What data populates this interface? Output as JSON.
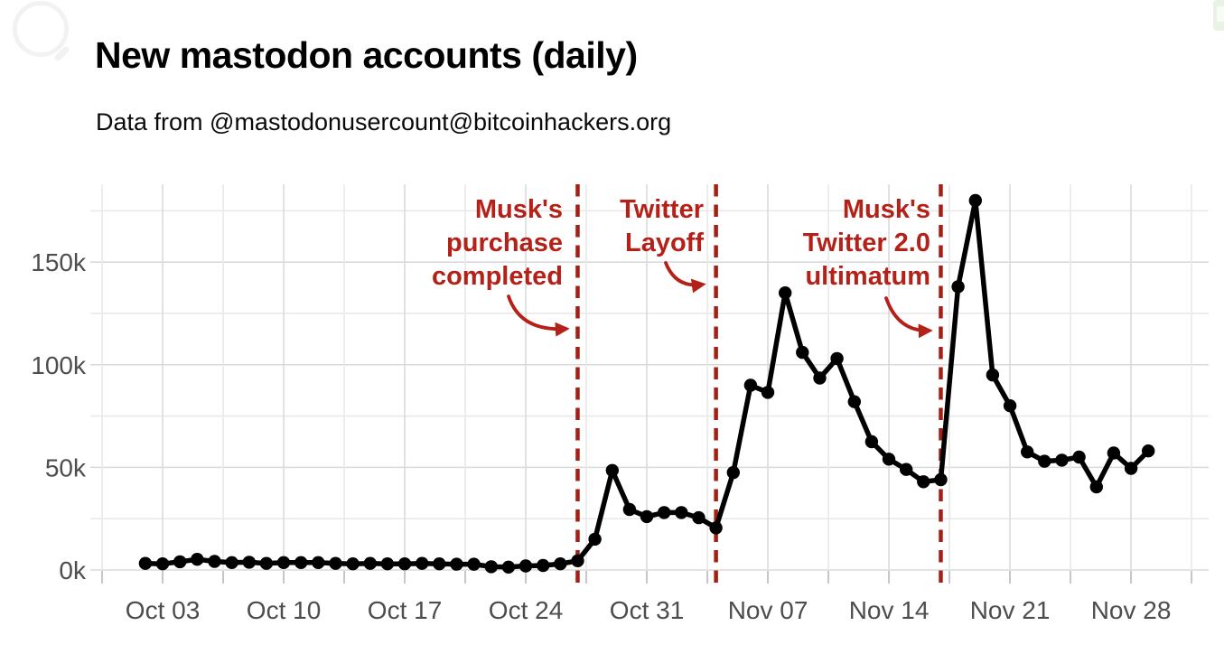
{
  "header": {
    "title": "New mastodon accounts (daily)",
    "subtitle": "Data from @mastodonusercount@bitcoinhackers.org"
  },
  "icons": {
    "search": "magnifying-glass-outline",
    "corner_badge": "partial-green-app-badge"
  },
  "colors": {
    "background": "#ffffff",
    "series": "#000000",
    "annotation_red": "#b42118",
    "event_line_red": "#a32015",
    "axis_text": "#4d4d4d",
    "grid_major": "#dadada",
    "grid_minor": "#e9e9e9",
    "tick": "#c6c6c6"
  },
  "chart_data": {
    "type": "line",
    "title": "New mastodon accounts (daily)",
    "subtitle": "Data from @mastodonusercount@bitcoinhackers.org",
    "xlabel": "",
    "ylabel": "",
    "unit_note": "values in thousands of new accounts per day",
    "grid": "on",
    "legend": "none",
    "ylim_k": [
      0,
      187
    ],
    "y_ticks": [
      {
        "label": "0k",
        "value": 0
      },
      {
        "label": "50k",
        "value": 50
      },
      {
        "label": "100k",
        "value": 100
      },
      {
        "label": "150k",
        "value": 150
      }
    ],
    "x_tick_labels": [
      "Oct 03",
      "Oct 10",
      "Oct 17",
      "Oct 24",
      "Oct 31",
      "Nov 07",
      "Nov 14",
      "Nov 21",
      "Nov 28"
    ],
    "x": [
      "Oct 02",
      "Oct 03",
      "Oct 04",
      "Oct 05",
      "Oct 06",
      "Oct 07",
      "Oct 08",
      "Oct 09",
      "Oct 10",
      "Oct 11",
      "Oct 12",
      "Oct 13",
      "Oct 14",
      "Oct 15",
      "Oct 16",
      "Oct 17",
      "Oct 18",
      "Oct 19",
      "Oct 20",
      "Oct 21",
      "Oct 22",
      "Oct 23",
      "Oct 24",
      "Oct 25",
      "Oct 26",
      "Oct 27",
      "Oct 28",
      "Oct 29",
      "Oct 30",
      "Oct 31",
      "Nov 01",
      "Nov 02",
      "Nov 03",
      "Nov 04",
      "Nov 05",
      "Nov 06",
      "Nov 07",
      "Nov 08",
      "Nov 09",
      "Nov 10",
      "Nov 11",
      "Nov 12",
      "Nov 13",
      "Nov 14",
      "Nov 15",
      "Nov 16",
      "Nov 17",
      "Nov 18",
      "Nov 19",
      "Nov 20",
      "Nov 21",
      "Nov 22",
      "Nov 23",
      "Nov 24",
      "Nov 25",
      "Nov 26",
      "Nov 27",
      "Nov 28",
      "Nov 29"
    ],
    "values_k": [
      3.2,
      3,
      4,
      5.2,
      4.2,
      3.6,
      3.8,
      3.2,
      3.6,
      3.6,
      3.6,
      3.2,
      3,
      3.2,
      3,
      3,
      3.2,
      3,
      2.8,
      2.8,
      1.6,
      1.4,
      2,
      2.2,
      3,
      4.5,
      15,
      48.5,
      29.5,
      26,
      28,
      28,
      25.5,
      20.5,
      47.5,
      90,
      86.5,
      135,
      106,
      93.5,
      103,
      82,
      62.5,
      54,
      49,
      43,
      44,
      138,
      180,
      95,
      80,
      57.5,
      53,
      53.5,
      55,
      40.5,
      57,
      49.5,
      58
    ],
    "events": [
      {
        "date": "Oct 27",
        "label_lines": [
          "Musk's",
          "purchase",
          "completed"
        ]
      },
      {
        "date": "Nov 04",
        "label_lines": [
          "Twitter",
          "Layoff"
        ]
      },
      {
        "date": "Nov 17",
        "label_lines": [
          "Musk's",
          "Twitter 2.0",
          "ultimatum"
        ]
      }
    ]
  }
}
